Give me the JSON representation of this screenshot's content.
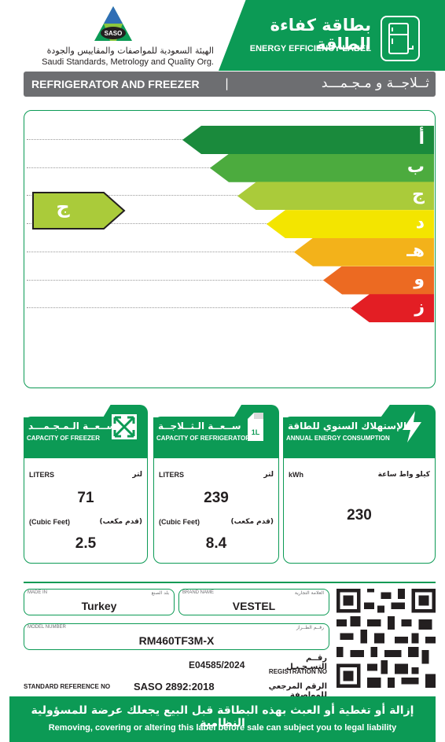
{
  "header": {
    "org_ar": "الهيئة السعودية للمواصفات والمقاييس والجودة",
    "org_en": "Saudi Standards, Metrology and Quality Org.",
    "logo_text": "SASO",
    "title_ar": "بطاقة كفاءة الطاقة",
    "title_en": "ENERGY EFFICIENCY LABEL"
  },
  "category": {
    "en": "REFRIGERATOR AND FREEZER",
    "separator": "|",
    "ar": "ثــلاجــة و مـجـمـــد"
  },
  "rating": {
    "classes": [
      {
        "letter": "أ",
        "color": "#1a8a3c"
      },
      {
        "letter": "ب",
        "color": "#4cab3e"
      },
      {
        "letter": "ج",
        "color": "#aacb3a"
      },
      {
        "letter": "د",
        "color": "#f3e500"
      },
      {
        "letter": "هـ",
        "color": "#f3b21a"
      },
      {
        "letter": "و",
        "color": "#ec6a22"
      },
      {
        "letter": "ز",
        "color": "#e31e24"
      }
    ],
    "selected_letter": "ج",
    "selected_color": "#aacb3a"
  },
  "freezer": {
    "title_ar": "ســعــة الـمـجـمـــد",
    "title_en": "CAPACITY OF FREEZER",
    "liters_en": "LITERS",
    "liters_ar": "لتر",
    "liters_value": "71",
    "cubic_en": "(Cubic Feet)",
    "cubic_ar": "(قدم مكعب)",
    "cubic_value": "2.5"
  },
  "refrigerator": {
    "title_ar": "ســعــة الـثــلاجــة",
    "title_en": "CAPACITY OF REFRIGERATOR",
    "liters_en": "LITERS",
    "liters_ar": "لتر",
    "liters_value": "239",
    "cubic_en": "(Cubic Feet)",
    "cubic_ar": "(قدم مكعب)",
    "cubic_value": "8.4",
    "icon_text": "1L"
  },
  "energy": {
    "title_ar": "الإستهلاك السنوي للطاقة",
    "title_en": "ANNUAL ENERGY CONSUMPTION",
    "unit_en": "kWh",
    "unit_ar": "كيلو واط ساعة",
    "value": "230"
  },
  "info": {
    "made_in_en": "MADE IN",
    "made_in_ar": "بلد الصنع",
    "made_in": "Turkey",
    "brand_en": "BRAND NAME",
    "brand_ar": "العلامة التجارية",
    "brand": "VESTEL",
    "model_en": "MODEL NUMBER",
    "model_ar": "رقــم الطــراز",
    "model": "RM460TF3M-X",
    "reg_no": "E04585/2024",
    "reg_ar": "رقــم التسـجـيـل",
    "reg_en": "REGISTRATION NO",
    "std_en": "STANDARD REFERENCE NO",
    "std_value": "SASO 2892:2018",
    "std_ar": "الرقم المرجعي للمواصفة"
  },
  "footer": {
    "ar": "إزالة أو تغطية أو العبث بهذه البطاقة قبل البيع يجعلك عرضة للمسؤولية النظامية",
    "en": "Removing, covering or altering this label before sale can subject you to legal liability"
  },
  "colors": {
    "brand_green": "#0c9a55",
    "header_grey": "#6d6e71"
  }
}
